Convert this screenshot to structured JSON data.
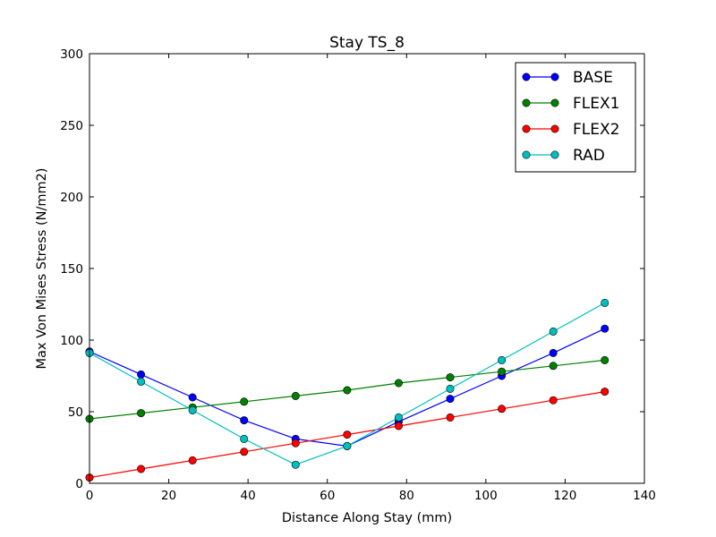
{
  "chart_data": {
    "type": "line",
    "title": "Stay TS_8",
    "xlabel": "Distance Along Stay (mm)",
    "ylabel": "Max Von Mises Stress (N/mm2)",
    "xlim": [
      0,
      140
    ],
    "ylim": [
      0,
      300
    ],
    "xticks": [
      0,
      20,
      40,
      60,
      80,
      100,
      120,
      140
    ],
    "yticks": [
      0,
      50,
      100,
      150,
      200,
      250,
      300
    ],
    "grid": false,
    "legend_position": "top-right",
    "x": [
      0,
      13,
      26,
      39,
      52,
      65,
      78,
      91,
      104,
      117,
      130
    ],
    "series": [
      {
        "name": "BASE",
        "color": "#0000ff",
        "values": [
          92,
          76,
          60,
          44,
          31,
          26,
          43,
          59,
          75,
          91,
          108
        ]
      },
      {
        "name": "FLEX1",
        "color": "#008000",
        "values": [
          45,
          49,
          53,
          57,
          61,
          65,
          70,
          74,
          78,
          82,
          86
        ]
      },
      {
        "name": "FLEX2",
        "color": "#ff0000",
        "values": [
          4,
          10,
          16,
          22,
          28,
          34,
          40,
          46,
          52,
          58,
          64
        ]
      },
      {
        "name": "RAD",
        "color": "#00bfbf",
        "values": [
          91,
          71,
          51,
          31,
          13,
          26,
          46,
          66,
          86,
          106,
          126
        ]
      }
    ]
  }
}
